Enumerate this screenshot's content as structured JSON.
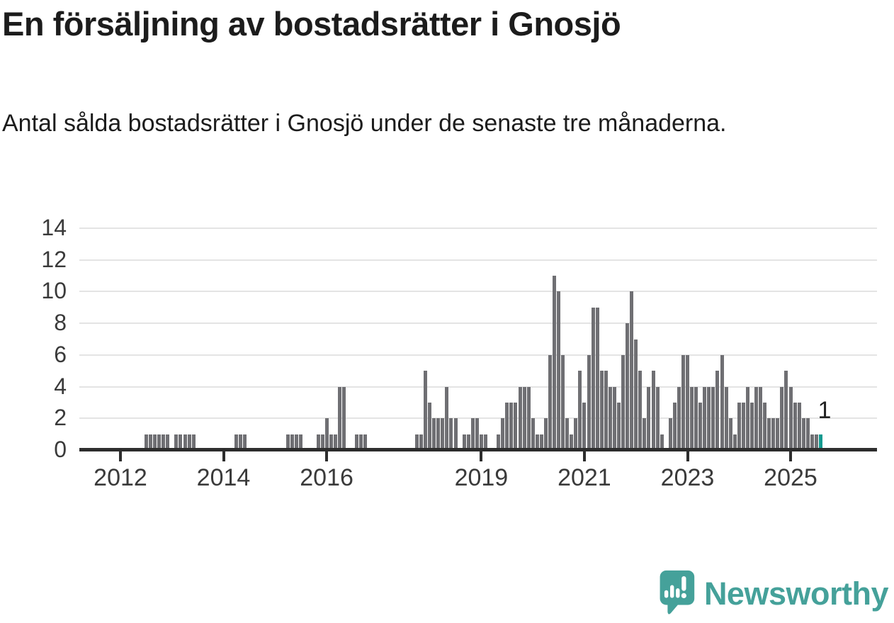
{
  "title": "En försäljning av bostadsrätter i Gnosjö",
  "subtitle": "Antal sålda bostadsrätter i Gnosjö under de senaste tre månaderna.",
  "annotation": {
    "label": "1"
  },
  "brand": {
    "name": "Newsworthy",
    "icon": "newsworthy-speech-bubble-bar-chart-icon"
  },
  "colors": {
    "bar": "#6f6f73",
    "highlight": "#149a90",
    "brand_teal": "#45a19a",
    "axis": "#2d2d2d",
    "grid": "#e4e4e4",
    "text": "#1c1c1c",
    "axis_label": "#3a3a3a"
  },
  "chart_data": {
    "type": "bar",
    "title": "En försäljning av bostadsrätter i Gnosjö",
    "subtitle": "Antal sålda bostadsrätter i Gnosjö under de senaste tre månaderna.",
    "xlabel": "",
    "ylabel": "",
    "ylim": [
      0,
      14
    ],
    "yticks": [
      0,
      2,
      4,
      6,
      8,
      10,
      12,
      14
    ],
    "xtick_years": [
      2012,
      2014,
      2016,
      2019,
      2021,
      2023,
      2025
    ],
    "grid": "horizontal",
    "legend": "none",
    "x_start": "2011-01",
    "x_end": "2025-08",
    "series_by_year": {
      "2011": [
        0,
        0,
        0,
        0,
        0,
        0,
        0,
        0,
        0,
        0,
        0,
        0
      ],
      "2012": [
        0,
        0,
        0,
        0,
        0,
        0,
        1,
        1,
        1,
        1,
        1,
        1
      ],
      "2013": [
        0,
        1,
        1,
        1,
        1,
        1,
        0,
        0,
        0,
        0,
        0,
        0
      ],
      "2014": [
        0,
        0,
        0,
        1,
        1,
        1,
        0,
        0,
        0,
        0,
        0,
        0
      ],
      "2015": [
        0,
        0,
        0,
        1,
        1,
        1,
        1,
        0,
        0,
        0,
        1,
        1
      ],
      "2016": [
        2,
        1,
        1,
        4,
        4,
        0,
        0,
        1,
        1,
        1,
        0,
        0
      ],
      "2017": [
        0,
        0,
        0,
        0,
        0,
        0,
        0,
        0,
        0,
        1,
        1,
        5
      ],
      "2018": [
        3,
        2,
        2,
        2,
        4,
        2,
        2,
        0,
        1,
        1,
        2,
        2
      ],
      "2019": [
        1,
        1,
        0,
        0,
        1,
        2,
        3,
        3,
        3,
        4,
        4,
        4
      ],
      "2020": [
        2,
        1,
        1,
        2,
        6,
        11,
        10,
        6,
        2,
        1,
        2,
        5
      ],
      "2021": [
        3,
        6,
        9,
        9,
        5,
        5,
        4,
        4,
        3,
        6,
        8,
        10
      ],
      "2022": [
        7,
        5,
        2,
        4,
        5,
        4,
        1,
        0,
        2,
        3,
        4,
        6
      ],
      "2023": [
        6,
        4,
        4,
        3,
        4,
        4,
        4,
        5,
        6,
        4,
        2,
        1
      ],
      "2024": [
        3,
        3,
        4,
        3,
        4,
        4,
        3,
        2,
        2,
        2,
        4,
        5
      ],
      "2025": [
        4,
        3,
        3,
        2,
        2,
        1,
        1,
        1
      ]
    },
    "highlight_last_bar": {
      "month": "2025-08",
      "value": 1,
      "label": "1"
    }
  }
}
